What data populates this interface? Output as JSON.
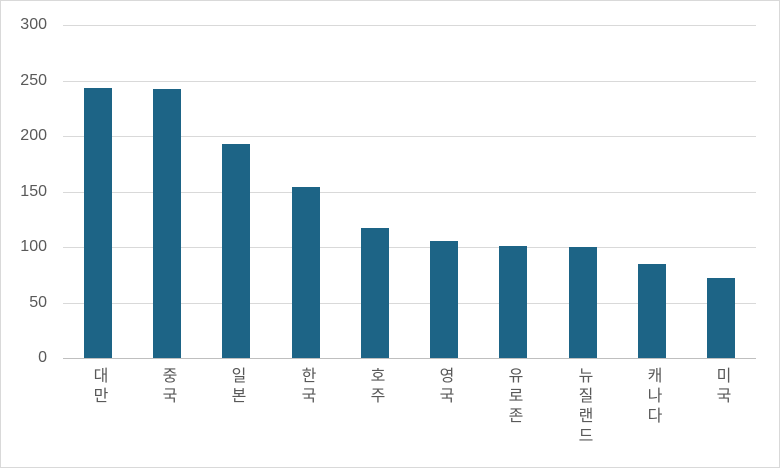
{
  "chart_data": {
    "type": "bar",
    "title": "",
    "xlabel": "",
    "ylabel": "",
    "categories": [
      "대만",
      "중국",
      "일본",
      "한국",
      "호주",
      "영국",
      "유로존",
      "뉴질랜드",
      "캐나다",
      "미국"
    ],
    "values": [
      243,
      242,
      193,
      154,
      117,
      105,
      101,
      100,
      85,
      72
    ],
    "ylim": [
      0,
      300
    ],
    "ytick_step": 50,
    "ytick_labels": [
      "0",
      "50",
      "100",
      "150",
      "200",
      "250",
      "300"
    ],
    "grid": true,
    "legend": false,
    "bar_color": "#1d6486",
    "gridline_color": "#d9d9d9",
    "axis_line_color": "#bfbfbf",
    "tick_label_color": "#595959",
    "background_color": "#ffffff",
    "border_color": "#d9d9d9"
  }
}
